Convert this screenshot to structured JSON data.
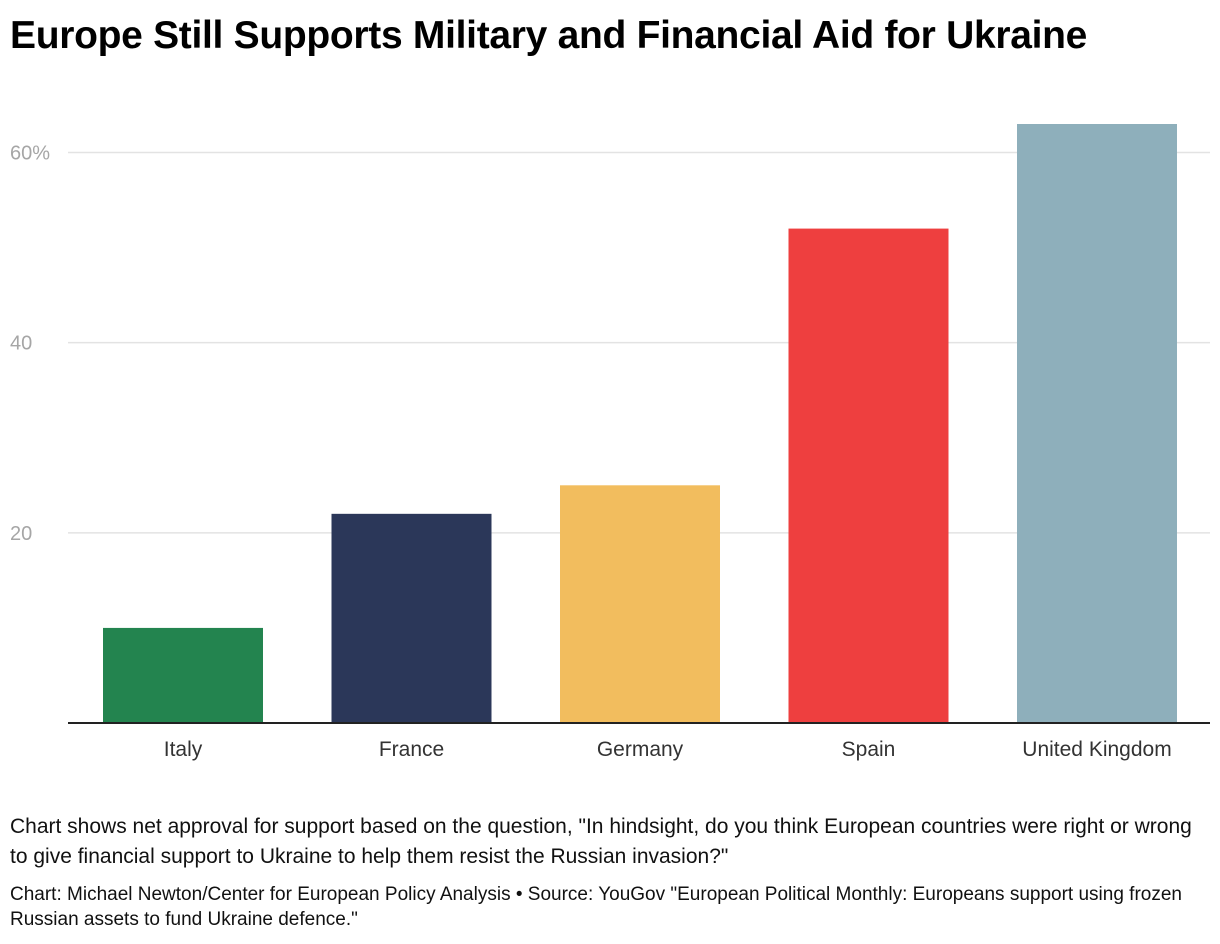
{
  "title": "Europe Still Supports Military and Financial Aid for Ukraine",
  "note": "Chart shows net approval for support based on the question, \"In hindsight, do you think European countries were right or wrong to give financial support to Ukraine to help them resist the Russian invasion?\"",
  "source": "Chart: Michael Newton/Center for European Policy Analysis • Source: YouGov \"European Political Monthly: Europeans support using frozen Russian assets to fund Ukraine defence.\"",
  "chart_data": {
    "type": "bar",
    "title": "Europe Still Supports Military and Financial Aid for Ukraine",
    "xlabel": "",
    "ylabel": "",
    "categories": [
      "Italy",
      "France",
      "Germany",
      "Spain",
      "United Kingdom"
    ],
    "values": [
      10,
      22,
      25,
      52,
      63
    ],
    "colors": [
      "#23844f",
      "#2b3759",
      "#f2bd5e",
      "#ee3f3f",
      "#8eafbb"
    ],
    "ylim": [
      0,
      63
    ],
    "yticks": [
      20,
      40,
      60
    ],
    "ytick_labels": [
      "20",
      "40",
      "60%"
    ],
    "grid": true,
    "legend": "none"
  }
}
